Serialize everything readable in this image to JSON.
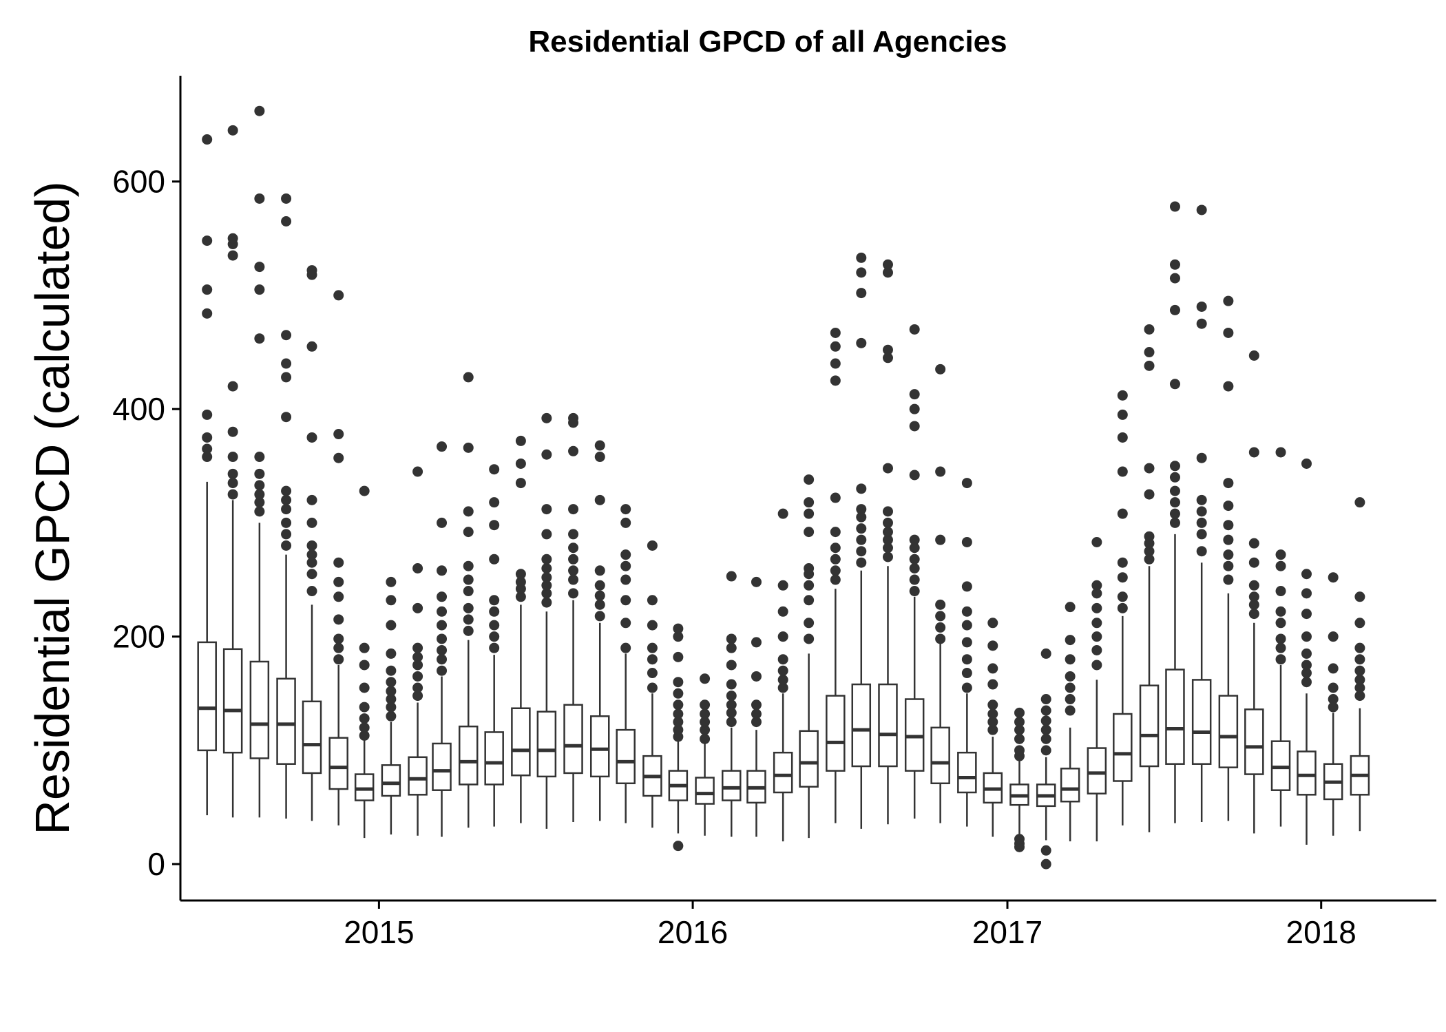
{
  "chart_data": {
    "type": "boxplot",
    "title": "Residential GPCD of all Agencies",
    "xlabel": "",
    "ylabel": "Residential GPCD (calculated)",
    "xlim": [
      "2014-05-15",
      "2018-05-15"
    ],
    "ylim": [
      -32,
      693
    ],
    "y_ticks": [
      0,
      200,
      400,
      600
    ],
    "x_ticks": [
      {
        "date": "2015-01-01",
        "label": "2015"
      },
      {
        "date": "2016-01-01",
        "label": "2016"
      },
      {
        "date": "2017-01-01",
        "label": "2017"
      },
      {
        "date": "2018-01-01",
        "label": "2018"
      }
    ],
    "grid": false,
    "legend": "none",
    "colors": {
      "box_stroke": "#333333",
      "box_fill": "#ffffff",
      "outlier": "#333333",
      "axis": "#000000"
    },
    "boxes": [
      {
        "x": "2014-06",
        "lower": 43,
        "q1": 100,
        "median": 137,
        "q3": 195,
        "upper": 336,
        "outliers": [
          358,
          365,
          375,
          395,
          484,
          505,
          548,
          637
        ]
      },
      {
        "x": "2014-07",
        "lower": 41,
        "q1": 98,
        "median": 135,
        "q3": 189,
        "upper": 320,
        "outliers": [
          325,
          335,
          343,
          358,
          380,
          420,
          535,
          545,
          550,
          645
        ]
      },
      {
        "x": "2014-08",
        "lower": 41,
        "q1": 93,
        "median": 123,
        "q3": 178,
        "upper": 300,
        "outliers": [
          310,
          318,
          325,
          333,
          343,
          358,
          462,
          505,
          525,
          585,
          662
        ]
      },
      {
        "x": "2014-09",
        "lower": 40,
        "q1": 88,
        "median": 123,
        "q3": 163,
        "upper": 272,
        "outliers": [
          280,
          290,
          300,
          312,
          320,
          328,
          393,
          428,
          440,
          465,
          565,
          585
        ]
      },
      {
        "x": "2014-10",
        "lower": 38,
        "q1": 80,
        "median": 105,
        "q3": 143,
        "upper": 228,
        "outliers": [
          240,
          255,
          265,
          272,
          280,
          300,
          320,
          375,
          455,
          518,
          522
        ]
      },
      {
        "x": "2014-11",
        "lower": 34,
        "q1": 66,
        "median": 85,
        "q3": 111,
        "upper": 175,
        "outliers": [
          180,
          190,
          198,
          215,
          235,
          248,
          265,
          357,
          378,
          500
        ]
      },
      {
        "x": "2014-12",
        "lower": 23,
        "q1": 56,
        "median": 66,
        "q3": 79,
        "upper": 110,
        "outliers": [
          113,
          120,
          128,
          138,
          155,
          175,
          190,
          328
        ]
      },
      {
        "x": "2015-01",
        "lower": 26,
        "q1": 60,
        "median": 71,
        "q3": 87,
        "upper": 125,
        "outliers": [
          130,
          138,
          145,
          152,
          160,
          170,
          185,
          210,
          232,
          248
        ]
      },
      {
        "x": "2015-02",
        "lower": 25,
        "q1": 61,
        "median": 75,
        "q3": 94,
        "upper": 142,
        "outliers": [
          148,
          155,
          165,
          175,
          182,
          190,
          225,
          260,
          345
        ]
      },
      {
        "x": "2015-03",
        "lower": 24,
        "q1": 65,
        "median": 82,
        "q3": 106,
        "upper": 165,
        "outliers": [
          170,
          180,
          188,
          198,
          210,
          222,
          235,
          258,
          300,
          367
        ]
      },
      {
        "x": "2015-04",
        "lower": 32,
        "q1": 70,
        "median": 90,
        "q3": 121,
        "upper": 197,
        "outliers": [
          205,
          215,
          225,
          240,
          250,
          262,
          292,
          310,
          366,
          428
        ]
      },
      {
        "x": "2015-05",
        "lower": 33,
        "q1": 70,
        "median": 89,
        "q3": 116,
        "upper": 184,
        "outliers": [
          190,
          200,
          210,
          222,
          232,
          268,
          298,
          318,
          347
        ]
      },
      {
        "x": "2015-06",
        "lower": 36,
        "q1": 78,
        "median": 100,
        "q3": 137,
        "upper": 228,
        "outliers": [
          235,
          242,
          248,
          255,
          335,
          352,
          372
        ]
      },
      {
        "x": "2015-07",
        "lower": 31,
        "q1": 77,
        "median": 100,
        "q3": 134,
        "upper": 222,
        "outliers": [
          230,
          238,
          245,
          252,
          260,
          268,
          290,
          312,
          360,
          392
        ]
      },
      {
        "x": "2015-08",
        "lower": 37,
        "q1": 80,
        "median": 104,
        "q3": 140,
        "upper": 232,
        "outliers": [
          238,
          250,
          258,
          268,
          278,
          290,
          312,
          363,
          388,
          392
        ]
      },
      {
        "x": "2015-09",
        "lower": 38,
        "q1": 77,
        "median": 101,
        "q3": 130,
        "upper": 212,
        "outliers": [
          218,
          228,
          236,
          245,
          258,
          320,
          358,
          368
        ]
      },
      {
        "x": "2015-10",
        "lower": 36,
        "q1": 71,
        "median": 90,
        "q3": 118,
        "upper": 185,
        "outliers": [
          190,
          212,
          232,
          250,
          262,
          272,
          300,
          312
        ]
      },
      {
        "x": "2015-11",
        "lower": 32,
        "q1": 60,
        "median": 77,
        "q3": 95,
        "upper": 150,
        "outliers": [
          155,
          168,
          180,
          190,
          210,
          232,
          280
        ]
      },
      {
        "x": "2015-12",
        "lower": 27,
        "q1": 56,
        "median": 69,
        "q3": 82,
        "upper": 108,
        "outliers": [
          16,
          112,
          118,
          125,
          132,
          140,
          150,
          160,
          182,
          200,
          207
        ]
      },
      {
        "x": "2016-01",
        "lower": 25,
        "q1": 53,
        "median": 62,
        "q3": 76,
        "upper": 106,
        "outliers": [
          110,
          118,
          125,
          132,
          140,
          163
        ]
      },
      {
        "x": "2016-02",
        "lower": 24,
        "q1": 56,
        "median": 67,
        "q3": 82,
        "upper": 120,
        "outliers": [
          125,
          133,
          140,
          148,
          158,
          175,
          190,
          198,
          253
        ]
      },
      {
        "x": "2016-03",
        "lower": 24,
        "q1": 54,
        "median": 67,
        "q3": 82,
        "upper": 118,
        "outliers": [
          125,
          132,
          140,
          165,
          195,
          248
        ]
      },
      {
        "x": "2016-04",
        "lower": 20,
        "q1": 63,
        "median": 78,
        "q3": 98,
        "upper": 150,
        "outliers": [
          155,
          162,
          170,
          180,
          200,
          222,
          245,
          308
        ]
      },
      {
        "x": "2016-05",
        "lower": 23,
        "q1": 68,
        "median": 89,
        "q3": 117,
        "upper": 185,
        "outliers": [
          198,
          212,
          232,
          245,
          255,
          260,
          292,
          308,
          318,
          338
        ]
      },
      {
        "x": "2016-06",
        "lower": 36,
        "q1": 82,
        "median": 107,
        "q3": 148,
        "upper": 242,
        "outliers": [
          250,
          258,
          268,
          278,
          292,
          322,
          425,
          440,
          455,
          467
        ]
      },
      {
        "x": "2016-07",
        "lower": 31,
        "q1": 86,
        "median": 118,
        "q3": 158,
        "upper": 258,
        "outliers": [
          265,
          275,
          285,
          295,
          305,
          312,
          330,
          458,
          502,
          520,
          533
        ]
      },
      {
        "x": "2016-08",
        "lower": 35,
        "q1": 86,
        "median": 114,
        "q3": 158,
        "upper": 262,
        "outliers": [
          270,
          278,
          285,
          292,
          300,
          310,
          348,
          445,
          452,
          520,
          527
        ]
      },
      {
        "x": "2016-09",
        "lower": 40,
        "q1": 82,
        "median": 112,
        "q3": 145,
        "upper": 235,
        "outliers": [
          240,
          250,
          260,
          268,
          278,
          285,
          342,
          385,
          400,
          413,
          470
        ]
      },
      {
        "x": "2016-10",
        "lower": 36,
        "q1": 71,
        "median": 89,
        "q3": 120,
        "upper": 195,
        "outliers": [
          198,
          208,
          218,
          228,
          285,
          345,
          435
        ]
      },
      {
        "x": "2016-11",
        "lower": 33,
        "q1": 63,
        "median": 76,
        "q3": 98,
        "upper": 150,
        "outliers": [
          155,
          168,
          180,
          195,
          210,
          222,
          244,
          283,
          335
        ]
      },
      {
        "x": "2016-12",
        "lower": 24,
        "q1": 54,
        "median": 66,
        "q3": 80,
        "upper": 112,
        "outliers": [
          118,
          125,
          132,
          140,
          158,
          172,
          192,
          212
        ]
      },
      {
        "x": "2017-01",
        "lower": 23,
        "q1": 52,
        "median": 60,
        "q3": 70,
        "upper": 92,
        "outliers": [
          15,
          18,
          22,
          95,
          100,
          110,
          118,
          125,
          133
        ]
      },
      {
        "x": "2017-02",
        "lower": 21,
        "q1": 51,
        "median": 60,
        "q3": 70,
        "upper": 94,
        "outliers": [
          0,
          12,
          100,
          110,
          118,
          126,
          135,
          145,
          185
        ]
      },
      {
        "x": "2017-03",
        "lower": 20,
        "q1": 55,
        "median": 66,
        "q3": 84,
        "upper": 120,
        "outliers": [
          135,
          145,
          155,
          165,
          180,
          197,
          226
        ]
      },
      {
        "x": "2017-04",
        "lower": 20,
        "q1": 62,
        "median": 80,
        "q3": 102,
        "upper": 162,
        "outliers": [
          175,
          188,
          200,
          212,
          225,
          238,
          245,
          283
        ]
      },
      {
        "x": "2017-05",
        "lower": 34,
        "q1": 73,
        "median": 97,
        "q3": 132,
        "upper": 218,
        "outliers": [
          225,
          235,
          252,
          265,
          308,
          345,
          375,
          395,
          412
        ]
      },
      {
        "x": "2017-06",
        "lower": 28,
        "q1": 86,
        "median": 113,
        "q3": 157,
        "upper": 262,
        "outliers": [
          268,
          275,
          282,
          288,
          325,
          348,
          438,
          450,
          470
        ]
      },
      {
        "x": "2017-07",
        "lower": 36,
        "q1": 88,
        "median": 119,
        "q3": 171,
        "upper": 290,
        "outliers": [
          300,
          308,
          318,
          328,
          340,
          350,
          422,
          487,
          515,
          527,
          578
        ]
      },
      {
        "x": "2017-08",
        "lower": 37,
        "q1": 88,
        "median": 116,
        "q3": 162,
        "upper": 265,
        "outliers": [
          275,
          290,
          300,
          310,
          320,
          357,
          475,
          490,
          575
        ]
      },
      {
        "x": "2017-09",
        "lower": 38,
        "q1": 85,
        "median": 112,
        "q3": 148,
        "upper": 238,
        "outliers": [
          250,
          262,
          272,
          285,
          298,
          315,
          335,
          420,
          467,
          495
        ]
      },
      {
        "x": "2017-10",
        "lower": 27,
        "q1": 79,
        "median": 103,
        "q3": 136,
        "upper": 212,
        "outliers": [
          220,
          228,
          235,
          245,
          265,
          282,
          362,
          447
        ]
      },
      {
        "x": "2017-11",
        "lower": 33,
        "q1": 65,
        "median": 85,
        "q3": 108,
        "upper": 175,
        "outliers": [
          180,
          190,
          198,
          212,
          222,
          240,
          262,
          272,
          362
        ]
      },
      {
        "x": "2017-12",
        "lower": 17,
        "q1": 61,
        "median": 78,
        "q3": 99,
        "upper": 150,
        "outliers": [
          160,
          168,
          175,
          185,
          200,
          220,
          238,
          255,
          352
        ]
      },
      {
        "x": "2018-01",
        "lower": 25,
        "q1": 57,
        "median": 72,
        "q3": 88,
        "upper": 133,
        "outliers": [
          138,
          145,
          155,
          172,
          200,
          252
        ]
      },
      {
        "x": "2018-02",
        "lower": 29,
        "q1": 61,
        "median": 78,
        "q3": 95,
        "upper": 137,
        "outliers": [
          148,
          155,
          162,
          170,
          180,
          190,
          212,
          235,
          318
        ]
      }
    ]
  }
}
